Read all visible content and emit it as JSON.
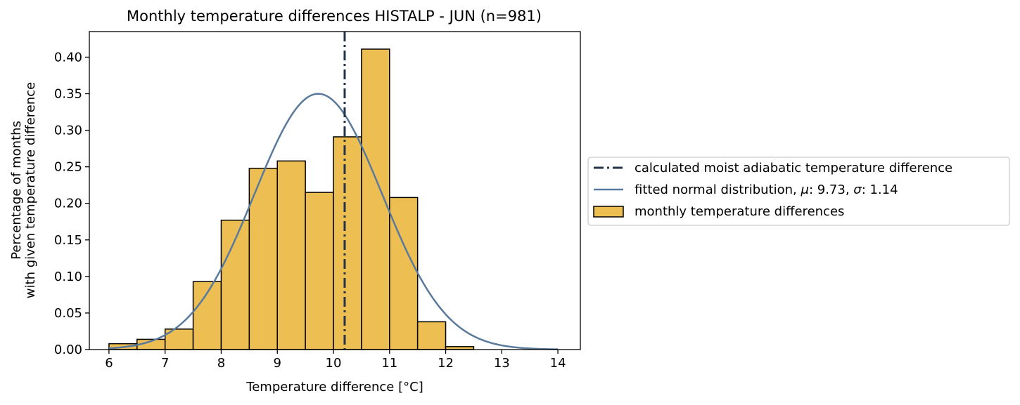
{
  "chart_data": {
    "type": "bar",
    "title": "Monthly temperature differences HISTALP - JUN (n=981)",
    "xlabel": "Temperature difference [°C]",
    "ylabel_lines": [
      "Percentage of months",
      "with given temperature difference"
    ],
    "xlim": [
      5.65,
      14.4
    ],
    "ylim": [
      0,
      0.435
    ],
    "xticks": [
      6,
      7,
      8,
      9,
      10,
      11,
      12,
      13,
      14
    ],
    "xtick_labels": [
      "6",
      "7",
      "8",
      "9",
      "10",
      "11",
      "12",
      "13",
      "14"
    ],
    "yticks": [
      0.0,
      0.05,
      0.1,
      0.15,
      0.2,
      0.25,
      0.3,
      0.35,
      0.4
    ],
    "ytick_labels": [
      "0.00",
      "0.05",
      "0.10",
      "0.15",
      "0.20",
      "0.25",
      "0.30",
      "0.35",
      "0.40"
    ],
    "grid": false,
    "legend_position": "right, outside plot",
    "histogram": {
      "name": "monthly temperature differences",
      "bin_edges": [
        6.0,
        6.5,
        7.0,
        7.5,
        8.0,
        8.5,
        9.0,
        9.5,
        10.0,
        10.5,
        11.0,
        11.5,
        12.0,
        12.5
      ],
      "values": [
        0.008,
        0.014,
        0.028,
        0.093,
        0.177,
        0.248,
        0.258,
        0.215,
        0.291,
        0.411,
        0.208,
        0.038,
        0.004
      ],
      "color": "#EDBE52",
      "edgecolor": "#000000"
    },
    "normal_fit": {
      "name": "fitted normal distribution, μ: 9.73, σ: 1.14",
      "label_parts": [
        "fitted normal distribution, ",
        "μ",
        ": 9.73, ",
        "σ",
        ": 1.14"
      ],
      "mu": 9.73,
      "sigma": 1.14,
      "x_range": [
        6.0,
        14.0
      ],
      "color": "#5A7A9D"
    },
    "moist_adiabatic_line": {
      "name": "calculated moist adiabatic temperature difference",
      "x": 10.2,
      "color": "#23344A"
    },
    "legend": [
      "calculated moist adiabatic temperature difference",
      "fitted normal distribution, μ: 9.73, σ: 1.14",
      "monthly temperature differences"
    ]
  }
}
